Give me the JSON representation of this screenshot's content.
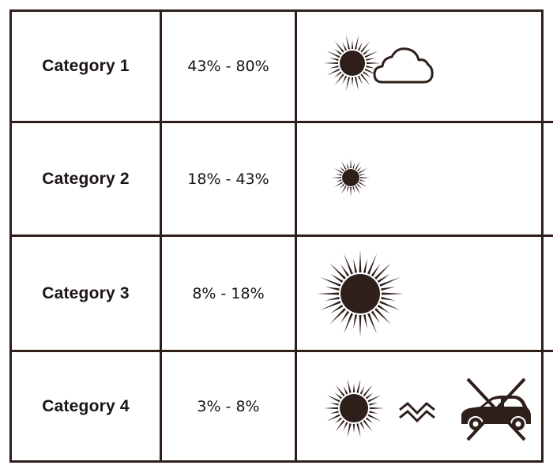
{
  "rows": [
    {
      "category": "Category 1",
      "range": "43% - 80%",
      "icons": [
        "sun-icon",
        "cloud-icon"
      ]
    },
    {
      "category": "Category 2",
      "range": "18% - 43%",
      "icons": [
        "small-sun-icon"
      ]
    },
    {
      "category": "Category 3",
      "range": "8% - 18%",
      "icons": [
        "large-sun-icon"
      ]
    },
    {
      "category": "Category 4",
      "range": "3% - 8%",
      "icons": [
        "sun-icon",
        "heat-wave-icon",
        "no-car-icon"
      ]
    }
  ],
  "colors": {
    "ink": "#2e1f1b"
  }
}
